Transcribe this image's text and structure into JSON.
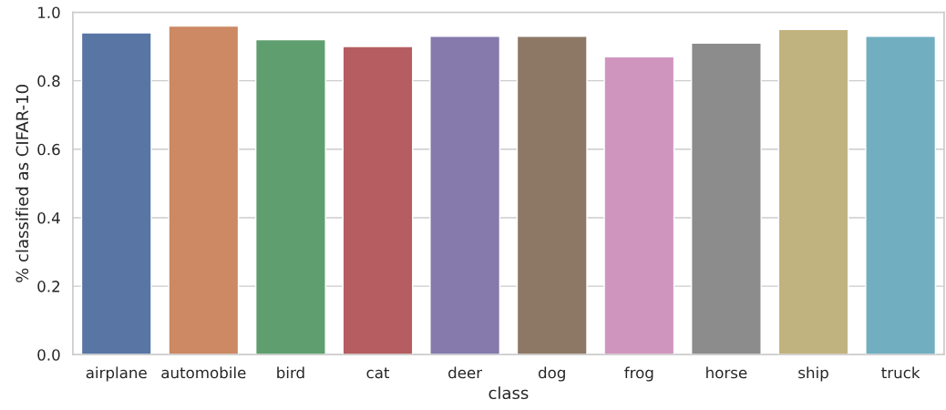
{
  "chart_data": {
    "type": "bar",
    "xlabel": "class",
    "ylabel": "% classified as CIFAR-10",
    "categories": [
      "airplane",
      "automobile",
      "bird",
      "cat",
      "deer",
      "dog",
      "frog",
      "horse",
      "ship",
      "truck"
    ],
    "values": [
      0.94,
      0.96,
      0.92,
      0.9,
      0.93,
      0.93,
      0.87,
      0.91,
      0.95,
      0.93
    ],
    "colors": [
      "#5875a4",
      "#cc8963",
      "#5f9e6e",
      "#b55d60",
      "#857aab",
      "#8d7866",
      "#d095bf",
      "#8c8c8c",
      "#c1b37f",
      "#71aec0"
    ],
    "ylim": [
      0,
      1.0
    ],
    "yticks": [
      {
        "value": 0,
        "label": "0.0"
      },
      {
        "value": 0.2,
        "label": "0.2"
      },
      {
        "value": 0.4,
        "label": "0.4"
      },
      {
        "value": 0.6,
        "label": "0.6"
      },
      {
        "value": 0.8,
        "label": "0.8"
      },
      {
        "value": 1.0,
        "label": "1.0"
      }
    ],
    "grid": "y"
  }
}
